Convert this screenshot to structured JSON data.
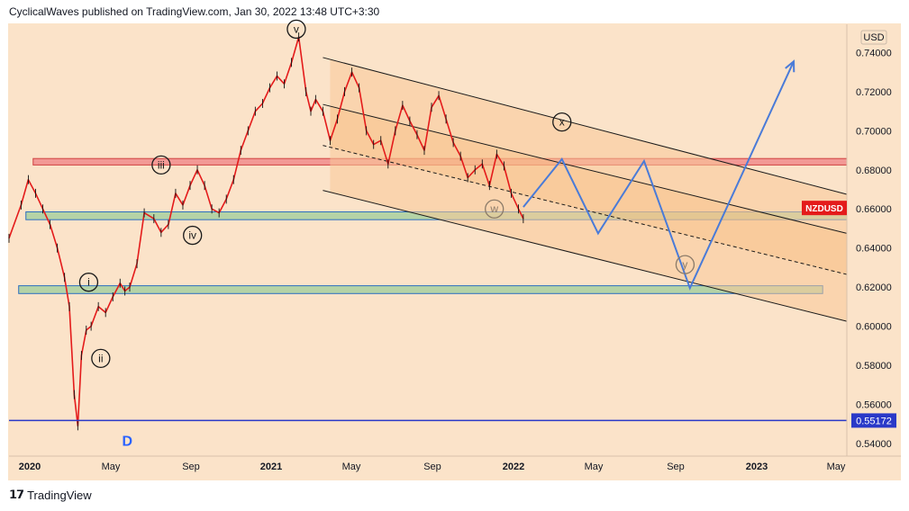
{
  "header": {
    "publisher": "CyclicalWaves published on TradingView.com, Jan 30, 2022 13:48 UTC+3:30"
  },
  "footer": {
    "brand": "TradingView",
    "logo_icon": "tradingview-logo-icon"
  },
  "chart_data": {
    "type": "line",
    "symbol": "NZDUSD",
    "currency": "USD",
    "last_price_label": "0.55172",
    "colors": {
      "background": "#fbe3c9",
      "candle": "#e41b1b",
      "projection": "#4a7bd8",
      "resistance_zone": "#f08c8c",
      "support_zone": "#a8d0a0",
      "channel_fill": "#f9c998",
      "horizontal_line": "#2a39c8",
      "symbol_badge": "#e41b1b"
    },
    "x_tick_labels": [
      "2020",
      "May",
      "Sep",
      "2021",
      "May",
      "Sep",
      "2022",
      "May",
      "Sep",
      "2023",
      "May"
    ],
    "x_tick_bold": [
      true,
      false,
      false,
      true,
      false,
      false,
      true,
      false,
      false,
      true,
      false
    ],
    "y_tick_labels": [
      "0.74000",
      "0.72000",
      "0.70000",
      "0.68000",
      "0.66000",
      "0.64000",
      "0.62000",
      "0.60000",
      "0.58000",
      "0.56000",
      "0.54000"
    ],
    "y_tick_values": [
      0.74,
      0.72,
      0.7,
      0.68,
      0.66,
      0.64,
      0.62,
      0.6,
      0.58,
      0.56,
      0.54
    ],
    "ylim": [
      0.5335,
      0.7545
    ],
    "xlim": [
      2019.95,
      2023.42
    ],
    "price_series": {
      "name": "NZDUSD",
      "x": [
        2019.95,
        2020.0,
        2020.03,
        2020.06,
        2020.09,
        2020.12,
        2020.15,
        2020.18,
        2020.2,
        2020.22,
        2020.235,
        2020.25,
        2020.27,
        2020.29,
        2020.32,
        2020.35,
        2020.38,
        2020.41,
        2020.43,
        2020.45,
        2020.48,
        2020.51,
        2020.55,
        2020.58,
        2020.61,
        2020.64,
        2020.67,
        2020.7,
        2020.73,
        2020.76,
        2020.79,
        2020.82,
        2020.85,
        2020.88,
        2020.91,
        2020.94,
        2020.97,
        2021.0,
        2021.03,
        2021.06,
        2021.09,
        2021.12,
        2021.15,
        2021.18,
        2021.2,
        2021.22,
        2021.25,
        2021.28,
        2021.31,
        2021.34,
        2021.37,
        2021.4,
        2021.43,
        2021.46,
        2021.49,
        2021.52,
        2021.55,
        2021.58,
        2021.61,
        2021.64,
        2021.67,
        2021.7,
        2021.73,
        2021.76,
        2021.79,
        2021.82,
        2021.85,
        2021.88,
        2021.91,
        2021.94,
        2021.97,
        2022.0,
        2022.03,
        2022.06,
        2022.08
      ],
      "y": [
        0.645,
        0.662,
        0.675,
        0.668,
        0.66,
        0.652,
        0.64,
        0.625,
        0.61,
        0.565,
        0.549,
        0.585,
        0.598,
        0.6,
        0.61,
        0.607,
        0.615,
        0.622,
        0.618,
        0.62,
        0.632,
        0.658,
        0.655,
        0.648,
        0.652,
        0.668,
        0.662,
        0.672,
        0.68,
        0.672,
        0.66,
        0.658,
        0.665,
        0.675,
        0.69,
        0.7,
        0.71,
        0.714,
        0.722,
        0.728,
        0.724,
        0.735,
        0.748,
        0.72,
        0.71,
        0.716,
        0.71,
        0.695,
        0.706,
        0.72,
        0.73,
        0.722,
        0.7,
        0.693,
        0.695,
        0.683,
        0.7,
        0.713,
        0.705,
        0.698,
        0.69,
        0.712,
        0.718,
        0.706,
        0.694,
        0.687,
        0.676,
        0.68,
        0.683,
        0.672,
        0.688,
        0.682,
        0.668,
        0.66,
        0.655
      ]
    },
    "projection": {
      "x": [
        2022.08,
        2022.24,
        2022.39,
        2022.58,
        2022.77,
        2023.2
      ],
      "y": [
        0.661,
        0.6855,
        0.6475,
        0.6845,
        0.6195,
        0.7355
      ]
    },
    "zones": [
      {
        "kind": "resistance",
        "x": [
          2020.05,
          2023.42
        ],
        "y": [
          0.6825,
          0.6858
        ]
      },
      {
        "kind": "support",
        "x": [
          2020.02,
          2023.42
        ],
        "y": [
          0.6545,
          0.6585
        ]
      },
      {
        "kind": "support",
        "x": [
          2019.99,
          2023.32
        ],
        "y": [
          0.6167,
          0.6207
        ]
      }
    ],
    "horizontal_line": {
      "y": 0.55172
    },
    "channel": {
      "upper": {
        "x": [
          2021.25,
          2023.42
        ],
        "y": [
          0.7375,
          0.6675
        ]
      },
      "middle": {
        "x": [
          2021.25,
          2023.42
        ],
        "y": [
          0.7135,
          0.6475
        ]
      },
      "lower_dashed": {
        "x": [
          2021.25,
          2023.42
        ],
        "y": [
          0.6925,
          0.6265
        ]
      },
      "bottom": {
        "x": [
          2021.25,
          2023.42
        ],
        "y": [
          0.6695,
          0.6025
        ]
      },
      "fill_start": 2021.28
    },
    "wave_labels": [
      {
        "text": "v",
        "x": 2021.14,
        "y": 0.752
      },
      {
        "text": "iii",
        "x": 2020.58,
        "y": 0.6825
      },
      {
        "text": "iv",
        "x": 2020.71,
        "y": 0.6465
      },
      {
        "text": "i",
        "x": 2020.28,
        "y": 0.6225
      },
      {
        "text": "ii",
        "x": 2020.33,
        "y": 0.5835
      },
      {
        "text": "w",
        "x": 2021.96,
        "y": 0.66,
        "faded": true
      },
      {
        "text": "x",
        "x": 2022.24,
        "y": 0.7045
      },
      {
        "text": "y",
        "x": 2022.75,
        "y": 0.6315,
        "faded": true
      }
    ],
    "annotations": [
      {
        "text": "D",
        "x": 2020.44,
        "y": 0.5415,
        "color": "#2962ff"
      }
    ]
  }
}
